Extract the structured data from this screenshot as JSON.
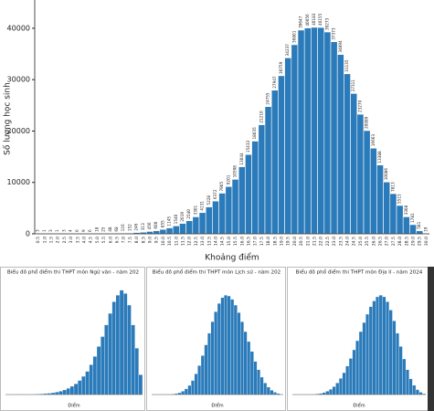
{
  "chart_data": [
    {
      "type": "bar",
      "xlabel": "Khoảng điểm",
      "ylabel": "Số lượng học sinh",
      "color": "#2b7bba",
      "categories": [
        "0.5",
        "1.0",
        "1.5",
        "2.0",
        "2.5",
        "3.0",
        "3.5",
        "4.0",
        "4.5",
        "5.0",
        "5.5",
        "6.0",
        "6.5",
        "7.0",
        "7.5",
        "8.0",
        "8.5",
        "9.0",
        "9.5",
        "10.0",
        "10.5",
        "11.0",
        "11.5",
        "12.0",
        "12.5",
        "13.0",
        "13.5",
        "14.0",
        "14.5",
        "15.0",
        "15.5",
        "16.0",
        "16.5",
        "17.0",
        "17.5",
        "18.0",
        "18.5",
        "19.0",
        "19.5",
        "20.0",
        "20.5",
        "21.0",
        "21.5",
        "22.0",
        "22.5",
        "23.0",
        "23.5",
        "24.0",
        "24.5",
        "25.0",
        "25.5",
        "26.0",
        "26.5",
        "27.0",
        "27.5",
        "28.0",
        "28.5",
        "29.0",
        "29.5",
        "30.0"
      ],
      "values": [
        3,
        1,
        3,
        1,
        3,
        4,
        6,
        9,
        6,
        18,
        25,
        48,
        68,
        116,
        152,
        246,
        313,
        456,
        600,
        855,
        1145,
        1540,
        2019,
        2540,
        3301,
        4131,
        5228,
        6372,
        7905,
        9201,
        10598,
        13044,
        15433,
        18035,
        21210,
        24755,
        27947,
        30759,
        34237,
        36801,
        39647,
        40056,
        40183,
        40155,
        39273,
        37373,
        34894,
        31135,
        27311,
        23270,
        20089,
        16663,
        13388,
        10086,
        7813,
        5515,
        3308,
        1781,
        581,
        19
      ],
      "ylim": [
        0,
        45500
      ],
      "yticks": [
        0,
        10000,
        20000,
        30000,
        40000
      ]
    },
    {
      "type": "bar",
      "title": "Biểu đồ phổ điểm thi THPT môn Ngữ văn - năm 202",
      "xlabel": "Điểm",
      "color": "#2b7bba",
      "values": [
        1,
        1,
        2,
        3,
        5,
        8,
        12,
        20,
        30,
        45,
        60,
        80,
        110,
        150,
        200,
        280,
        380,
        500,
        650,
        850,
        1100,
        1400,
        1800,
        2300,
        2900,
        3500,
        4200,
        4900,
        5600,
        6000,
        6300,
        6100,
        5400,
        4200,
        2800,
        1200
      ],
      "ylim": [
        0,
        7000
      ]
    },
    {
      "type": "bar",
      "title": "Biểu đồ phổ điểm thi THPT môn Lịch sử - năm 202",
      "xlabel": "Điểm",
      "color": "#2b7bba",
      "values": [
        1,
        1,
        2,
        4,
        8,
        15,
        30,
        60,
        110,
        200,
        350,
        550,
        850,
        1250,
        1750,
        2350,
        3000,
        3700,
        4400,
        5000,
        5500,
        5850,
        6000,
        5950,
        5750,
        5400,
        4950,
        4400,
        3800,
        3200,
        2600,
        2000,
        1500,
        1050,
        700,
        450,
        260,
        140,
        60,
        20
      ],
      "ylim": [
        0,
        7000
      ]
    },
    {
      "type": "bar",
      "title": "Biểu đồ phổ điểm thi THPT môn Địa lí - năm 2024",
      "xlabel": "Điểm",
      "color": "#2b7bba",
      "values": [
        1,
        1,
        2,
        3,
        6,
        12,
        22,
        40,
        70,
        120,
        200,
        320,
        480,
        700,
        980,
        1320,
        1720,
        2180,
        2700,
        3250,
        3800,
        4350,
        4850,
        5300,
        5650,
        5900,
        6000,
        5900,
        5600,
        5100,
        4450,
        3700,
        2900,
        2150,
        1500,
        950,
        560,
        300,
        140,
        50
      ],
      "ylim": [
        0,
        7000
      ]
    }
  ]
}
